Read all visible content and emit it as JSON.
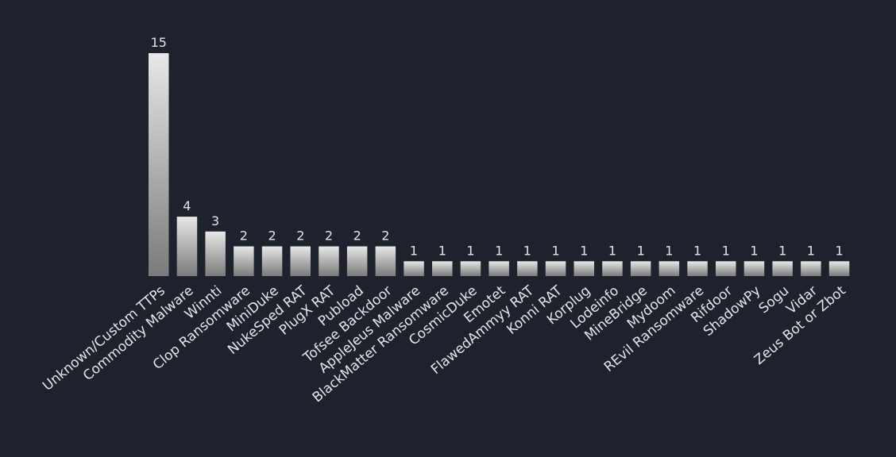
{
  "chart_data": {
    "type": "bar",
    "title": "",
    "xlabel": "",
    "ylabel": "",
    "ylim": [
      0,
      15
    ],
    "grid": false,
    "legend": "none",
    "colors": {
      "background": "#1e222d",
      "bar_top": "#e8e8e8",
      "bar_bottom": "#7a7a7a",
      "text": "#e6e6e6"
    },
    "categories": [
      "Unknown/Custom TTPs",
      "Commodity Malware",
      "Winnti",
      "Clop Ransomware",
      "MiniDuke",
      "NukeSped RAT",
      "PlugX RAT",
      "Pubload",
      "Tofsee Backdoor",
      "AppleJeus Malware",
      "BlackMatter Ransomware",
      "CosmicDuke",
      "Emotet",
      "FlawedAmmyy RAT",
      "Konni RAT",
      "Korplug",
      "Lodeinfo",
      "MineBridge",
      "Mydoom",
      "REvil Ransomware",
      "Rifdoor",
      "ShadowPy",
      "Sogu",
      "Vidar",
      "Zeus Bot or Zbot"
    ],
    "values": [
      15,
      4,
      3,
      2,
      2,
      2,
      2,
      2,
      2,
      1,
      1,
      1,
      1,
      1,
      1,
      1,
      1,
      1,
      1,
      1,
      1,
      1,
      1,
      1,
      1
    ]
  }
}
